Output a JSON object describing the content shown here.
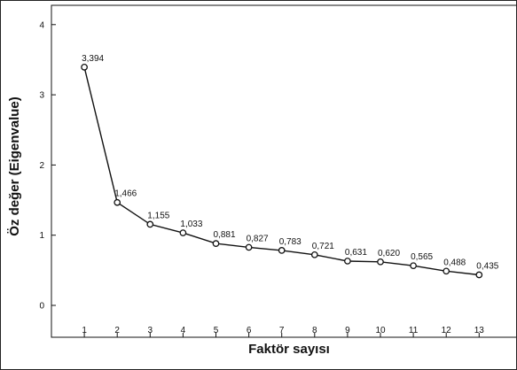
{
  "chart_data": {
    "type": "line",
    "title": "",
    "xlabel": "Faktör sayısı",
    "ylabel": "Öz değer (Eigenvalue)",
    "x": [
      1,
      2,
      3,
      4,
      5,
      6,
      7,
      8,
      9,
      10,
      11,
      12,
      13
    ],
    "values": [
      3.394,
      1.466,
      1.155,
      1.033,
      0.881,
      0.827,
      0.783,
      0.721,
      0.631,
      0.62,
      0.565,
      0.488,
      0.435
    ],
    "data_labels": [
      "3,394",
      "1,466",
      "1,155",
      "1,033",
      "0,881",
      "0,827",
      "0,783",
      "0,721",
      "0,631",
      "0,620",
      "0,565",
      "0,488",
      "0,435"
    ],
    "x_ticks": [
      "1",
      "2",
      "3",
      "4",
      "5",
      "6",
      "7",
      "8",
      "9",
      "10",
      "11",
      "12",
      "13"
    ],
    "y_ticks": [
      "0",
      "1",
      "2",
      "3",
      "4"
    ],
    "ylim": [
      0,
      4
    ],
    "xlim": [
      0,
      14
    ],
    "grid": false,
    "legend": "none",
    "marker": "open-circle",
    "colors": {
      "line": "#111111",
      "axis": "#111111"
    }
  }
}
